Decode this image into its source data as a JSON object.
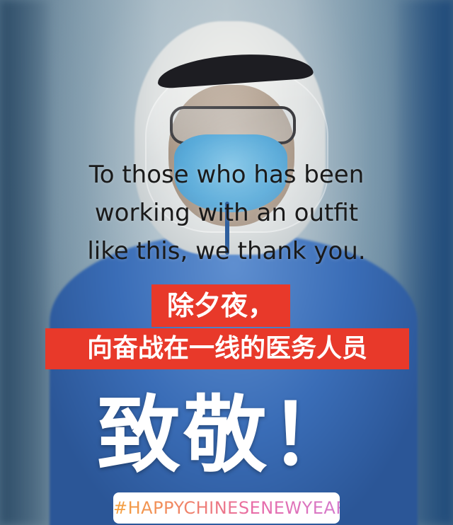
{
  "caption": {
    "lines": [
      "To those who has been",
      "working with an outfit",
      "like this, we thank you."
    ]
  },
  "chinese": {
    "line1": "除夕夜，",
    "line2": "向奋战在一线的医务人员",
    "big": "致敬！"
  },
  "hashtag": {
    "text": "#HAPPYCHINESENEWYEAR"
  },
  "colors": {
    "label_red": "#e8392a",
    "suit_blue": "#3a6db7",
    "hashtag_gradient": [
      "#f4a23c",
      "#e86ba8",
      "#d27bd0"
    ]
  }
}
